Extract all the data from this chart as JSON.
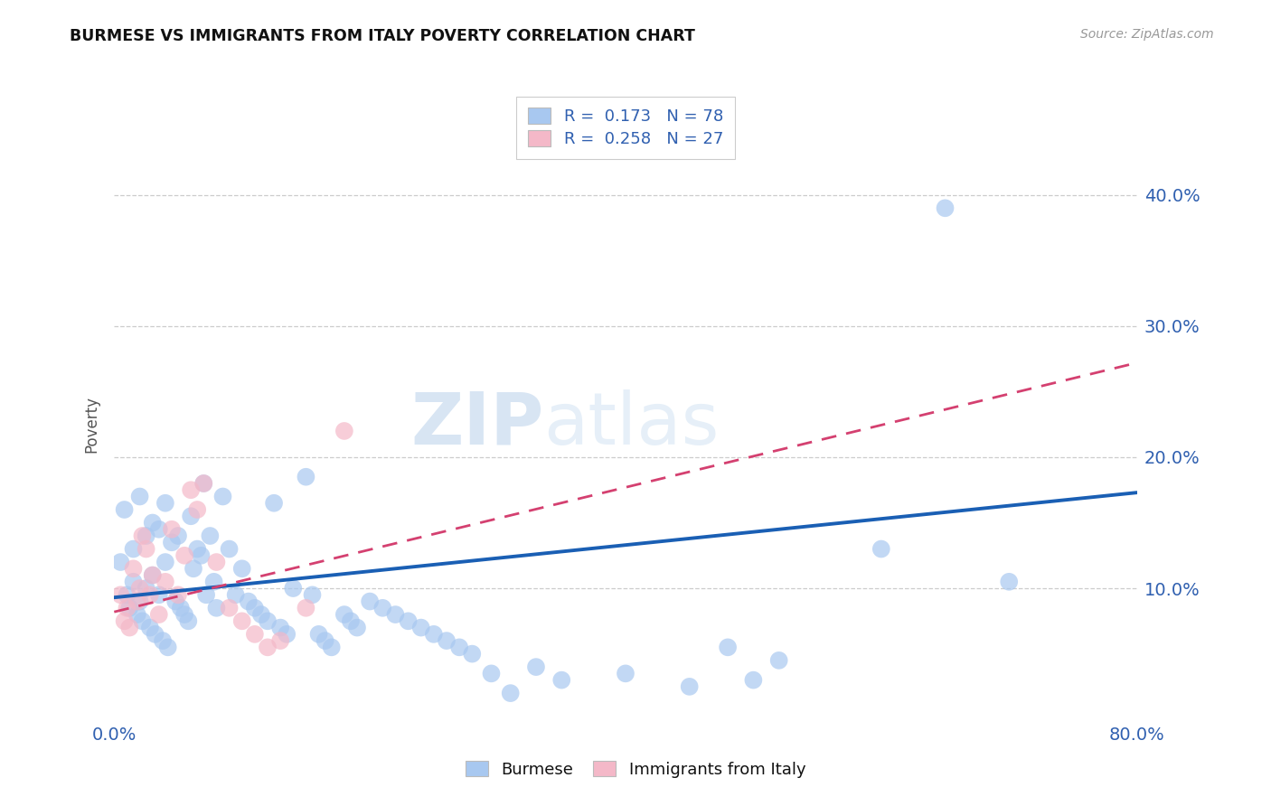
{
  "title": "BURMESE VS IMMIGRANTS FROM ITALY POVERTY CORRELATION CHART",
  "source": "Source: ZipAtlas.com",
  "ylabel": "Poverty",
  "xlim": [
    0.0,
    0.8
  ],
  "ylim": [
    0.0,
    0.45
  ],
  "xticks": [
    0.0,
    0.1,
    0.2,
    0.3,
    0.4,
    0.5,
    0.6,
    0.7,
    0.8
  ],
  "xticklabels": [
    "0.0%",
    "",
    "",
    "",
    "",
    "",
    "",
    "",
    "80.0%"
  ],
  "yticks": [
    0.0,
    0.1,
    0.2,
    0.3,
    0.4
  ],
  "yticklabels_right": [
    "",
    "10.0%",
    "20.0%",
    "30.0%",
    "40.0%"
  ],
  "blue_color": "#a8c8f0",
  "pink_color": "#f4b8c8",
  "blue_line_color": "#1a5fb4",
  "pink_line_color": "#d44070",
  "legend_R_blue": "0.173",
  "legend_N_blue": "78",
  "legend_R_pink": "0.258",
  "legend_N_pink": "27",
  "watermark_zip": "ZIP",
  "watermark_atlas": "atlas",
  "blue_x": [
    0.005,
    0.008,
    0.01,
    0.012,
    0.015,
    0.015,
    0.018,
    0.02,
    0.02,
    0.022,
    0.025,
    0.025,
    0.028,
    0.03,
    0.03,
    0.032,
    0.035,
    0.035,
    0.038,
    0.04,
    0.04,
    0.042,
    0.045,
    0.048,
    0.05,
    0.052,
    0.055,
    0.058,
    0.06,
    0.062,
    0.065,
    0.068,
    0.07,
    0.072,
    0.075,
    0.078,
    0.08,
    0.085,
    0.09,
    0.095,
    0.1,
    0.105,
    0.11,
    0.115,
    0.12,
    0.125,
    0.13,
    0.135,
    0.14,
    0.15,
    0.155,
    0.16,
    0.165,
    0.17,
    0.18,
    0.185,
    0.19,
    0.2,
    0.21,
    0.22,
    0.23,
    0.24,
    0.25,
    0.26,
    0.27,
    0.28,
    0.295,
    0.31,
    0.33,
    0.35,
    0.4,
    0.45,
    0.48,
    0.5,
    0.52,
    0.6,
    0.65,
    0.7
  ],
  "blue_y": [
    0.12,
    0.16,
    0.095,
    0.085,
    0.13,
    0.105,
    0.08,
    0.17,
    0.09,
    0.075,
    0.14,
    0.1,
    0.07,
    0.15,
    0.11,
    0.065,
    0.145,
    0.095,
    0.06,
    0.165,
    0.12,
    0.055,
    0.135,
    0.09,
    0.14,
    0.085,
    0.08,
    0.075,
    0.155,
    0.115,
    0.13,
    0.125,
    0.18,
    0.095,
    0.14,
    0.105,
    0.085,
    0.17,
    0.13,
    0.095,
    0.115,
    0.09,
    0.085,
    0.08,
    0.075,
    0.165,
    0.07,
    0.065,
    0.1,
    0.185,
    0.095,
    0.065,
    0.06,
    0.055,
    0.08,
    0.075,
    0.07,
    0.09,
    0.085,
    0.08,
    0.075,
    0.07,
    0.065,
    0.06,
    0.055,
    0.05,
    0.035,
    0.02,
    0.04,
    0.03,
    0.035,
    0.025,
    0.055,
    0.03,
    0.045,
    0.13,
    0.39,
    0.105
  ],
  "pink_x": [
    0.005,
    0.008,
    0.01,
    0.012,
    0.015,
    0.018,
    0.02,
    0.022,
    0.025,
    0.028,
    0.03,
    0.035,
    0.04,
    0.045,
    0.05,
    0.055,
    0.06,
    0.065,
    0.07,
    0.08,
    0.09,
    0.1,
    0.11,
    0.12,
    0.13,
    0.15,
    0.18
  ],
  "pink_y": [
    0.095,
    0.075,
    0.085,
    0.07,
    0.115,
    0.09,
    0.1,
    0.14,
    0.13,
    0.095,
    0.11,
    0.08,
    0.105,
    0.145,
    0.095,
    0.125,
    0.175,
    0.16,
    0.18,
    0.12,
    0.085,
    0.075,
    0.065,
    0.055,
    0.06,
    0.085,
    0.22
  ],
  "blue_line_x0": 0.0,
  "blue_line_x1": 0.8,
  "blue_line_y0": 0.093,
  "blue_line_y1": 0.173,
  "pink_line_x0": 0.0,
  "pink_line_x1": 0.8,
  "pink_line_y0": 0.082,
  "pink_line_y1": 0.272
}
